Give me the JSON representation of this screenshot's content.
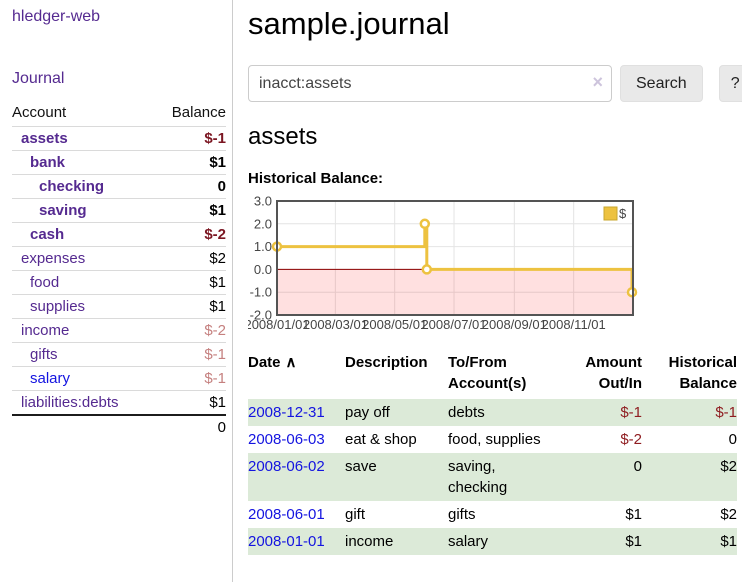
{
  "app": {
    "brand": "hledger-web",
    "nav_journal": "Journal"
  },
  "colors": {
    "link_purple": "#552a90",
    "link_blue": "#1414e0",
    "negative_strong": "#7b1622",
    "negative_soft": "#c5807f",
    "negative_table": "#8f1d21",
    "row_stripe_green": "#dcead8",
    "chart_line": "#EDC240",
    "chart_zero_line": "#8b0000",
    "chart_negative_fill": "rgba(255,0,0,0.12)"
  },
  "sidebar": {
    "header": {
      "account": "Account",
      "balance": "Balance"
    },
    "accounts": [
      {
        "name": "assets",
        "indent": 0,
        "bold": true,
        "balance": "$-1",
        "bal_class": "neg-strong"
      },
      {
        "name": "bank",
        "indent": 1,
        "bold": true,
        "balance": "$1",
        "bal_class": ""
      },
      {
        "name": "checking",
        "indent": 2,
        "bold": true,
        "balance": "0",
        "bal_class": ""
      },
      {
        "name": "saving",
        "indent": 2,
        "bold": true,
        "balance": "$1",
        "bal_class": ""
      },
      {
        "name": "cash",
        "indent": 1,
        "bold": true,
        "balance": "$-2",
        "bal_class": "neg-strong"
      },
      {
        "name": "expenses",
        "indent": 0,
        "bold": false,
        "balance": "$2",
        "bal_class": ""
      },
      {
        "name": "food",
        "indent": 1,
        "bold": false,
        "balance": "$1",
        "bal_class": ""
      },
      {
        "name": "supplies",
        "indent": 1,
        "bold": false,
        "balance": "$1",
        "bal_class": ""
      },
      {
        "name": "income",
        "indent": 0,
        "bold": false,
        "balance": "$-2",
        "bal_class": "neg-soft"
      },
      {
        "name": "gifts",
        "indent": 1,
        "bold": false,
        "balance": "$-1",
        "bal_class": "neg-soft"
      },
      {
        "name": "salary",
        "indent": 1,
        "bold": false,
        "balance": "$-1",
        "bal_class": "neg-soft",
        "link": "blue"
      },
      {
        "name": "liabilities:debts",
        "indent": 0,
        "bold": false,
        "balance": "$1",
        "bal_class": ""
      }
    ],
    "total": "0"
  },
  "main": {
    "title": "sample.journal",
    "search": {
      "value": "inacct:assets",
      "clear_icon": "×",
      "button": "Search",
      "help_button": "?"
    },
    "account_heading": "assets",
    "chart_heading": "Historical Balance:"
  },
  "chart_data": {
    "type": "line",
    "title": "Historical Balance:",
    "series": [
      {
        "name": "$",
        "color": "#EDC240",
        "step": true,
        "points": [
          [
            "2008/01/01",
            1
          ],
          [
            "2008/06/01",
            2
          ],
          [
            "2008/06/03",
            0
          ],
          [
            "2008/12/31",
            -1
          ]
        ]
      }
    ],
    "x_ticks": [
      "2008/01/01",
      "2008/03/01",
      "2008/05/01",
      "2008/07/01",
      "2008/09/01",
      "2008/11/01"
    ],
    "y_ticks": [
      "3.0",
      "2.0",
      "1.0",
      "0.0",
      "-1.0",
      "-2.0"
    ],
    "xlim": [
      "2008/01/01",
      "2009/01/01"
    ],
    "ylim": [
      -2,
      3
    ],
    "grid": true,
    "negative_region_shaded": true,
    "legend_position": "top-right"
  },
  "register": {
    "headers": {
      "date": "Date",
      "sort_indicator": "∧",
      "description": "Description",
      "to_from": "To/From Account(s)",
      "amount": "Amount Out/In",
      "balance": "Historical Balance"
    },
    "rows": [
      {
        "date": "2008-12-31",
        "description": "pay off",
        "to_from": "debts",
        "amount": "$-1",
        "balance": "$-1",
        "amount_neg": true,
        "balance_neg": true
      },
      {
        "date": "2008-06-03",
        "description": "eat & shop",
        "to_from": "food, supplies",
        "amount": "$-2",
        "balance": "0",
        "amount_neg": true,
        "balance_neg": false
      },
      {
        "date": "2008-06-02",
        "description": "save",
        "to_from": "saving, checking",
        "amount": "0",
        "balance": "$2",
        "amount_neg": false,
        "balance_neg": false
      },
      {
        "date": "2008-06-01",
        "description": "gift",
        "to_from": "gifts",
        "amount": "$1",
        "balance": "$2",
        "amount_neg": false,
        "balance_neg": false
      },
      {
        "date": "2008-01-01",
        "description": "income",
        "to_from": "salary",
        "amount": "$1",
        "balance": "$1",
        "amount_neg": false,
        "balance_neg": false
      }
    ]
  }
}
